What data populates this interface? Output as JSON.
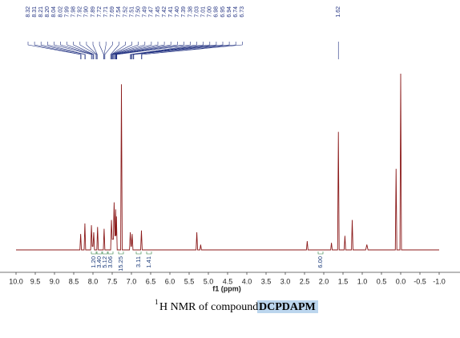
{
  "chart_data": {
    "type": "line",
    "x_label": "f1 (ppm)",
    "caption_sup": "1",
    "caption": "H NMR of compound ",
    "caption_highlight": "DCPDAPM",
    "color": "#8b1a1a",
    "xlim": [
      10.0,
      -1.0
    ],
    "ylim": [
      0,
      100
    ],
    "xticks": [
      {
        "value": 10,
        "label": "10.0"
      },
      9.5,
      {
        "value": 9,
        "label": "9.0"
      },
      8.5,
      {
        "value": 8,
        "label": "8.0"
      },
      7.5,
      {
        "value": 7,
        "label": "7.0"
      },
      6.5,
      {
        "value": 6,
        "label": "6.0"
      },
      5.5,
      {
        "value": 5,
        "label": "5.0"
      },
      4.5,
      {
        "value": 4,
        "label": "4.0"
      },
      3.5,
      {
        "value": 3,
        "label": "3.0"
      },
      2.5,
      {
        "value": 2,
        "label": "2.0"
      },
      1.5,
      {
        "value": 1,
        "label": "1.0"
      },
      0.5,
      {
        "value": 0,
        "label": "0.0"
      },
      -0.5,
      {
        "value": -1,
        "label": "-1.0"
      }
    ],
    "peak_labels": [
      "8.32",
      "8.31",
      "8.21",
      "8.20",
      "8.04",
      "8.02",
      "7.99",
      "7.98",
      "7.92",
      "7.90",
      "7.89",
      "7.72",
      "7.71",
      "7.69",
      "7.54",
      "7.52",
      "7.51",
      "7.50",
      "7.49",
      "7.47",
      "7.45",
      "7.42",
      "7.41",
      "7.40",
      "7.39",
      "7.38",
      "7.03",
      "7.01",
      "7.00",
      "6.98",
      "6.95",
      "6.94",
      "6.74",
      "6.73"
    ],
    "peak_label_single": "1.62",
    "integrations": [
      "1.20",
      "3.40",
      "5.12",
      "3.06",
      "15.25",
      "3.11",
      "1.41",
      "6.00"
    ],
    "x": [
      10.0,
      8.34,
      8.32,
      8.3,
      8.23,
      8.21,
      8.19,
      8.06,
      8.04,
      8.02,
      8.0,
      7.98,
      7.96,
      7.9,
      7.88,
      7.86,
      7.73,
      7.71,
      7.69,
      7.54,
      7.52,
      7.5,
      7.47,
      7.45,
      7.43,
      7.42,
      7.41,
      7.4,
      7.39,
      7.37,
      7.28,
      7.26,
      7.24,
      7.05,
      7.03,
      7.01,
      7.0,
      6.98,
      6.96,
      6.76,
      6.74,
      6.72,
      5.32,
      5.3,
      5.28,
      5.22,
      5.2,
      5.18,
      2.45,
      2.43,
      2.41,
      1.82,
      1.8,
      1.78,
      1.64,
      1.62,
      1.6,
      1.47,
      1.45,
      1.43,
      1.28,
      1.26,
      1.24,
      0.91,
      0.88,
      0.85,
      0.14,
      0.12,
      0.1,
      0.02,
      0.0,
      -0.02,
      -1.0
    ],
    "values": [
      0,
      0,
      9,
      0,
      0,
      15,
      0,
      0,
      14,
      2,
      2,
      10,
      0,
      0,
      13,
      0,
      0,
      12,
      0,
      0,
      17,
      6,
      6,
      27,
      8,
      8,
      23,
      8,
      19,
      0,
      0,
      94,
      0,
      0,
      10,
      2,
      2,
      9,
      0,
      0,
      11,
      0,
      0,
      10,
      0,
      0,
      3,
      0,
      0,
      5,
      0,
      0,
      4,
      0,
      0,
      67,
      0,
      0,
      8,
      0,
      0,
      17,
      0,
      0,
      3,
      0,
      0,
      46,
      0,
      0,
      100,
      0,
      0
    ]
  }
}
